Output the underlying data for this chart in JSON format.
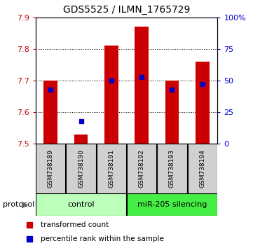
{
  "title": "GDS5525 / ILMN_1765729",
  "samples": [
    "GSM738189",
    "GSM738190",
    "GSM738191",
    "GSM738192",
    "GSM738193",
    "GSM738194"
  ],
  "red_bar_tops": [
    7.7,
    7.53,
    7.81,
    7.87,
    7.7,
    7.76
  ],
  "blue_marker_pct": [
    43,
    18,
    50,
    53,
    43,
    47
  ],
  "bar_base": 7.5,
  "ylim_left": [
    7.5,
    7.9
  ],
  "ylim_right": [
    0,
    100
  ],
  "left_yticks": [
    7.5,
    7.6,
    7.7,
    7.8,
    7.9
  ],
  "right_yticks": [
    0,
    25,
    50,
    75,
    100
  ],
  "right_yticklabels": [
    "0",
    "25",
    "50",
    "75",
    "100%"
  ],
  "protocol_groups": [
    {
      "label": "control",
      "samples": [
        0,
        1,
        2
      ],
      "color": "#bbffbb"
    },
    {
      "label": "miR-205 silencing",
      "samples": [
        3,
        4,
        5
      ],
      "color": "#44ee44"
    }
  ],
  "red_color": "#cc0000",
  "blue_color": "#0000cc",
  "bar_width": 0.45,
  "legend_red_label": "transformed count",
  "legend_blue_label": "percentile rank within the sample",
  "protocol_label": "protocol",
  "sample_bg_color": "#d0d0d0",
  "plot_bg": "#ffffff",
  "grid_yticks": [
    7.6,
    7.7,
    7.8
  ]
}
